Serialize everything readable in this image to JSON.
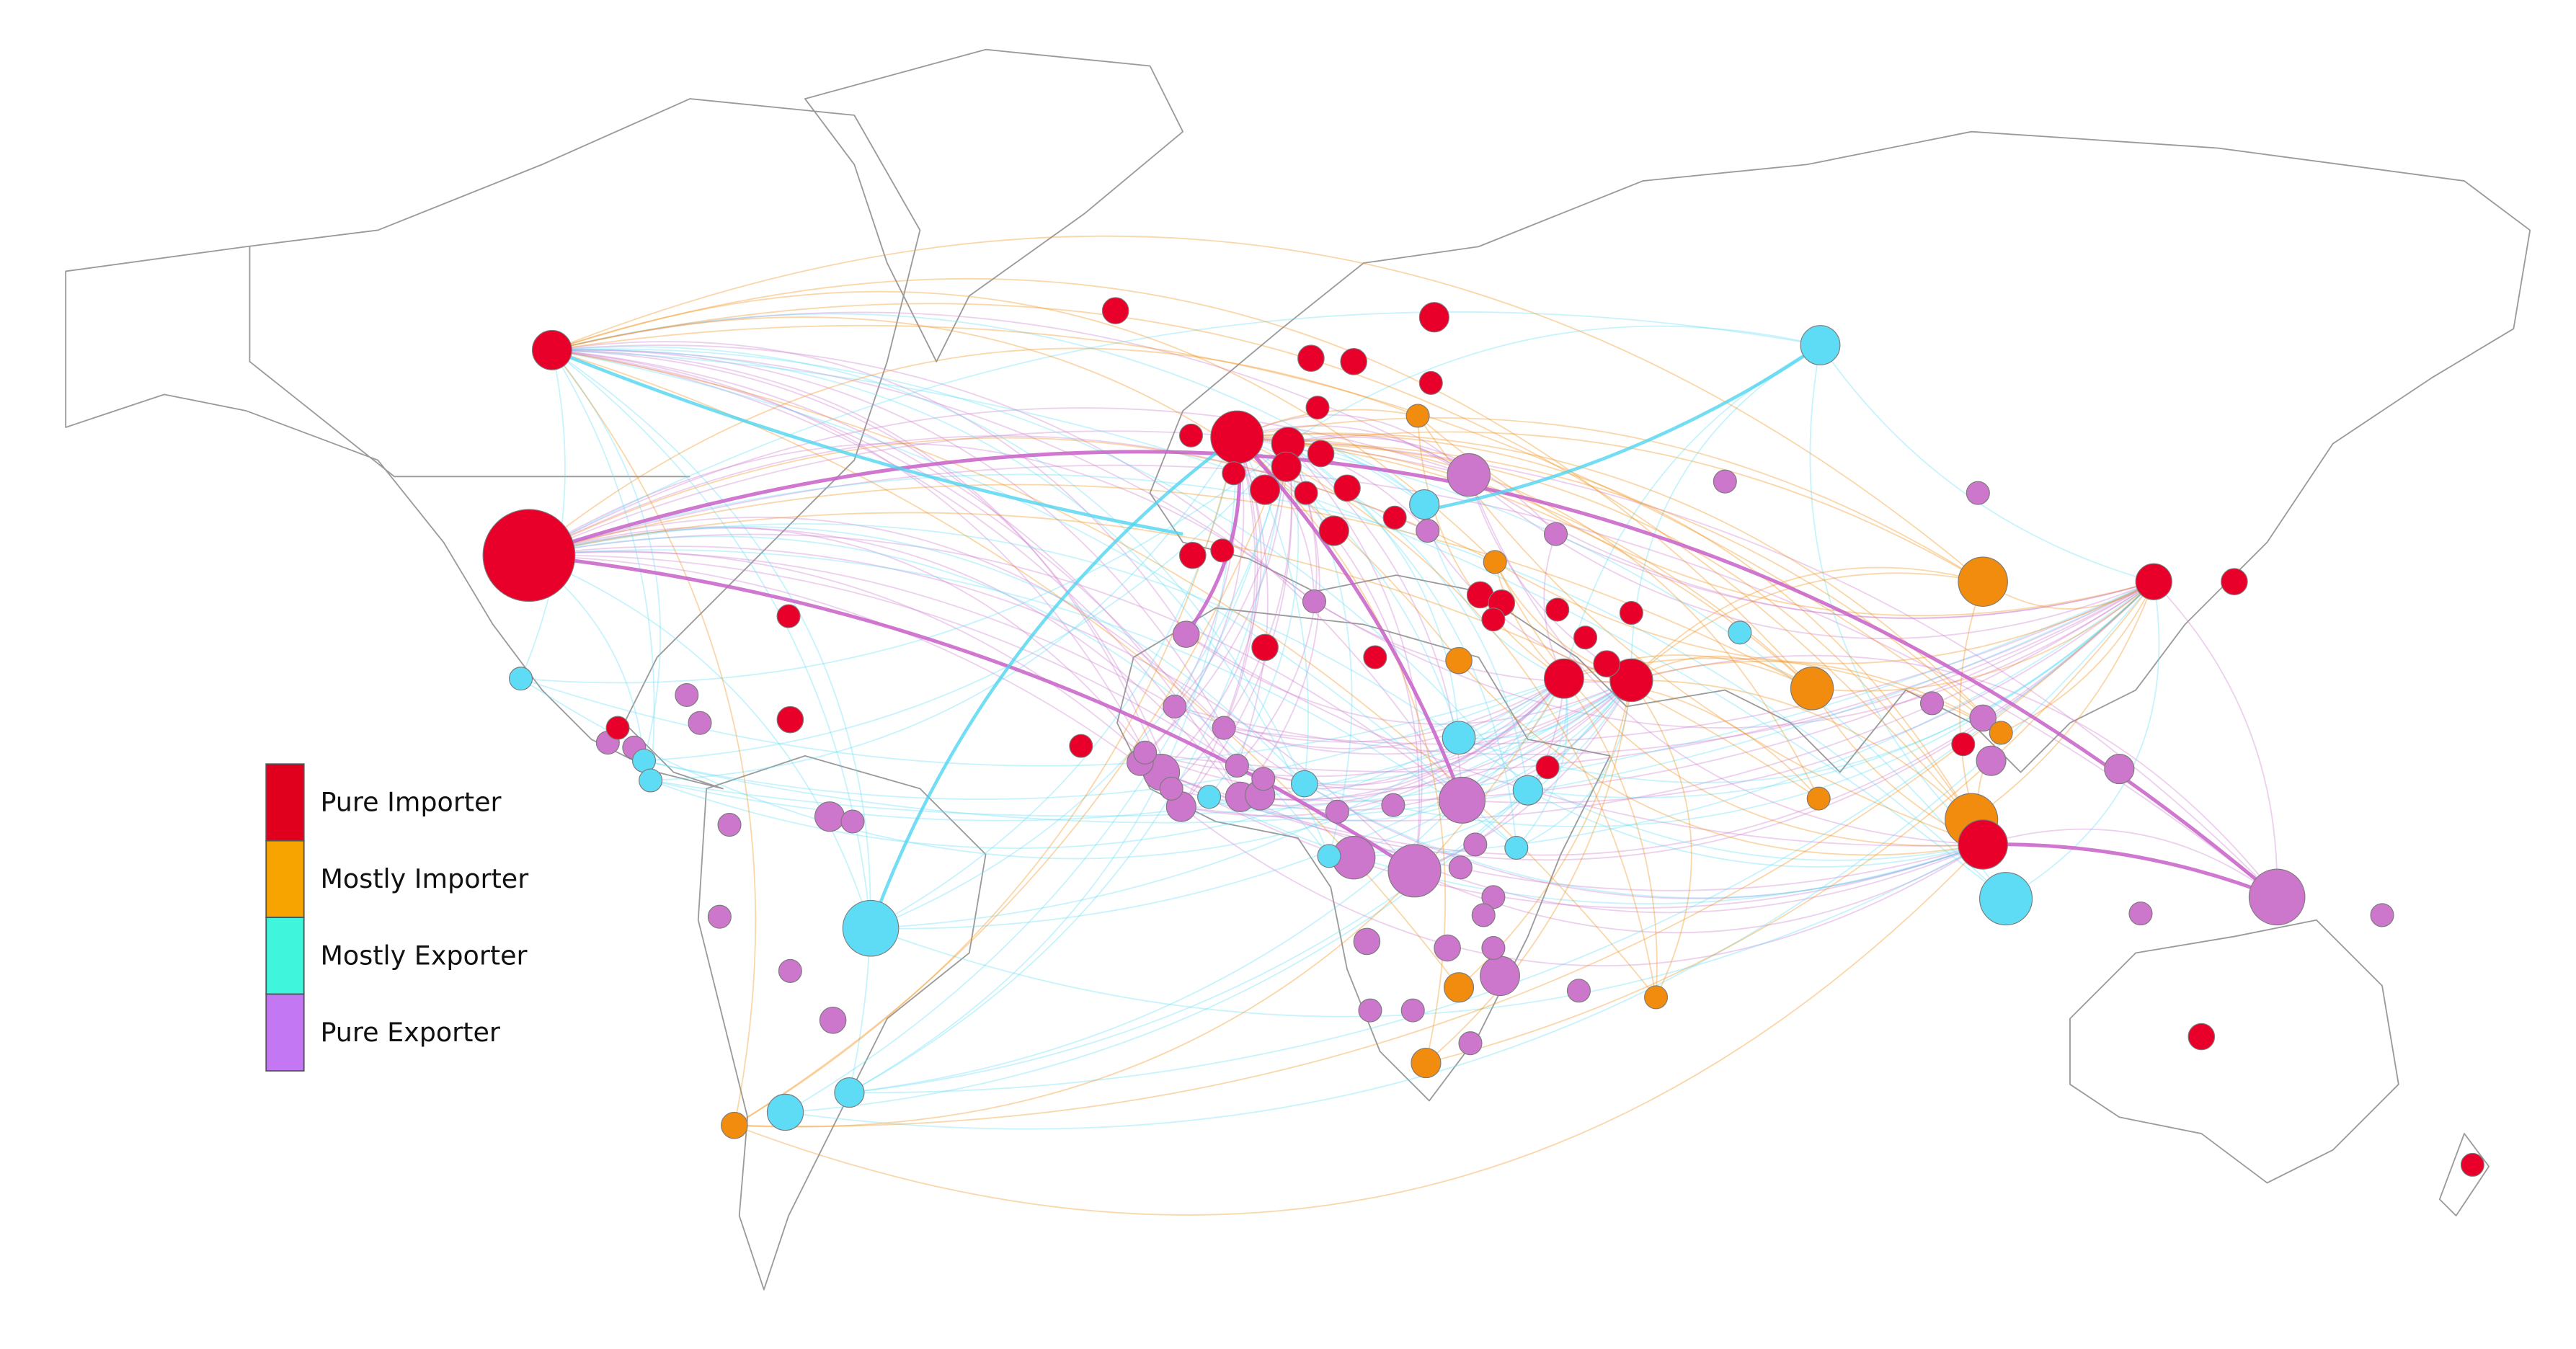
{
  "legend": {
    "items": [
      {
        "label": "Pure Importer",
        "color": "#e0001e"
      },
      {
        "label": "Mostly Importer",
        "color": "#f7a300"
      },
      {
        "label": "Mostly Exporter",
        "color": "#3ff5dc"
      },
      {
        "label": "Pure Exporter",
        "color": "#c377f2"
      }
    ]
  }
}
